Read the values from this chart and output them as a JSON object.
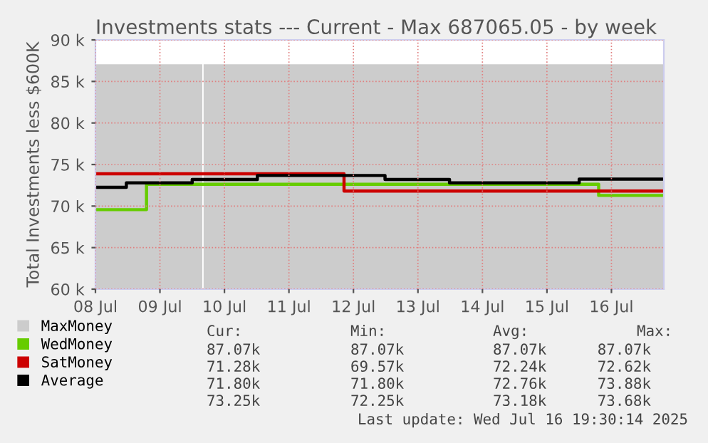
{
  "chart_data": {
    "type": "step",
    "title": "Investments stats --- Current - Max 687065.05 - by week",
    "ylabel": "Total Investments less $600K",
    "xlim": [
      "2025-07-08T00:00",
      "2025-07-16T19:30"
    ],
    "xticks": [
      {
        "value": "2025-07-08",
        "label": "08 Jul"
      },
      {
        "value": "2025-07-09",
        "label": "09 Jul"
      },
      {
        "value": "2025-07-10",
        "label": "10 Jul"
      },
      {
        "value": "2025-07-11",
        "label": "11 Jul"
      },
      {
        "value": "2025-07-12",
        "label": "12 Jul"
      },
      {
        "value": "2025-07-13",
        "label": "13 Jul"
      },
      {
        "value": "2025-07-14",
        "label": "14 Jul"
      },
      {
        "value": "2025-07-15",
        "label": "15 Jul"
      },
      {
        "value": "2025-07-16",
        "label": "16 Jul"
      }
    ],
    "ylim": [
      60,
      90
    ],
    "yticks": [
      {
        "value": 60,
        "label": "60 k"
      },
      {
        "value": 65,
        "label": "65 k"
      },
      {
        "value": 70,
        "label": "70 k"
      },
      {
        "value": 75,
        "label": "75 k"
      },
      {
        "value": 80,
        "label": "80 k"
      },
      {
        "value": 85,
        "label": "85 k"
      },
      {
        "value": 90,
        "label": "90 k"
      }
    ],
    "grid": true,
    "legend": "bottom",
    "series": [
      {
        "name": "MaxMoney",
        "type": "area",
        "color": "#cccccc",
        "x": [
          "2025-07-08T00:00",
          "2025-07-09T15:45",
          "2025-07-09T16:00",
          "2025-07-09T16:15",
          "2025-07-16T19:30"
        ],
        "values": [
          87.07,
          87.07,
          null,
          87.07,
          87.07
        ]
      },
      {
        "name": "WedMoney",
        "color": "#66cc00",
        "x": [
          "2025-07-08T00:00",
          "2025-07-08T19:00",
          "2025-07-15T19:15",
          "2025-07-16T19:30"
        ],
        "values": [
          69.57,
          72.62,
          71.28,
          71.28
        ]
      },
      {
        "name": "SatMoney",
        "color": "#cc0000",
        "x": [
          "2025-07-08T00:00",
          "2025-07-11T20:30",
          "2025-07-16T19:30"
        ],
        "values": [
          73.88,
          71.8,
          71.8
        ]
      },
      {
        "name": "Average",
        "color": "#000000",
        "x": [
          "2025-07-08T00:00",
          "2025-07-08T11:30",
          "2025-07-09T12:00",
          "2025-07-10T12:15",
          "2025-07-12T11:45",
          "2025-07-13T11:45",
          "2025-07-15T12:00",
          "2025-07-16T19:30"
        ],
        "values": [
          72.25,
          72.8,
          73.2,
          73.68,
          73.2,
          72.8,
          73.25,
          73.25
        ]
      }
    ],
    "annotations": [
      "Cur:",
      "Min:",
      "Avg:",
      "Max:",
      "87.07k",
      "87.07k",
      "87.07k",
      "87.07k",
      "71.28k",
      "69.57k",
      "72.24k",
      "72.62k",
      "71.80k",
      "71.80k",
      "72.76k",
      "73.88k",
      "73.25k",
      "72.25k",
      "73.18k",
      "73.68k",
      "Last update: Wed Jul 16 19:30:14 2025"
    ]
  }
}
